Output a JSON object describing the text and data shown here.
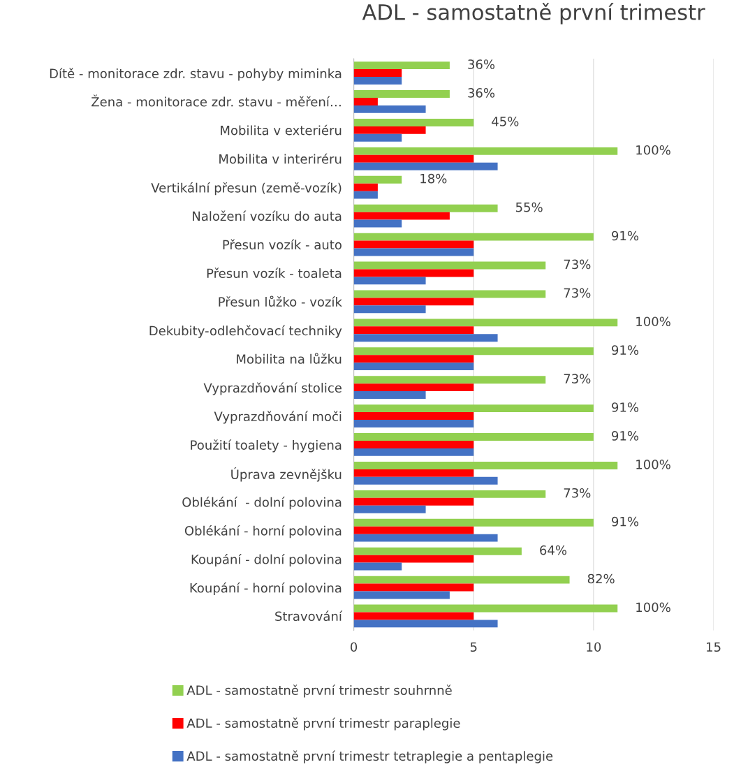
{
  "chart_data": {
    "type": "bar",
    "orientation": "horizontal",
    "title": "ADL - samostatně první trimestr",
    "categories": [
      "Dítě - monitorace zdr. stavu - pohyby miminka",
      "Žena - monitorace zdr. stavu - měření…",
      "Mobilita v exteriéru",
      "Mobilita v interiréru",
      "Vertikální přesun (země-vozík)",
      "Naložení vozíku do auta",
      "Přesun vozík - auto",
      "Přesun vozík - toaleta",
      "Přesun lůžko - vozík",
      "Dekubity-odlehčovací techniky",
      "Mobilita na lůžku",
      "Vyprazdňování stolice",
      "Vyprazdňování moči",
      "Použití toalety - hygiena",
      "Úprava zevnějšku",
      "Oblékání  - dolní polovina",
      "Oblékání - horní polovina",
      "Koupání - dolní polovina",
      "Koupání - horní polovina",
      "Stravování"
    ],
    "series": [
      {
        "name": "ADL - samostatně první trimestr souhrnně",
        "color": "#92d050",
        "values": [
          4,
          4,
          5,
          11,
          2,
          6,
          10,
          8,
          8,
          11,
          10,
          8,
          10,
          10,
          11,
          8,
          10,
          7,
          9,
          11
        ]
      },
      {
        "name": "ADL - samostatně první trimestr paraplegie",
        "color": "#ff0000",
        "values": [
          2,
          1,
          3,
          5,
          1,
          4,
          5,
          5,
          5,
          5,
          5,
          5,
          5,
          5,
          5,
          5,
          5,
          5,
          5,
          5
        ]
      },
      {
        "name": "ADL - samostatně první trimestr tetraplegie a pentaplegie",
        "color": "#4472c4",
        "values": [
          2,
          3,
          2,
          6,
          1,
          2,
          5,
          3,
          3,
          6,
          5,
          3,
          5,
          5,
          6,
          3,
          6,
          2,
          4,
          6
        ]
      }
    ],
    "annotations": [
      "36%",
      "36%",
      "45%",
      "100%",
      "18%",
      "55%",
      "91%",
      "73%",
      "73%",
      "100%",
      "91%",
      "73%",
      "91%",
      "91%",
      "100%",
      "73%",
      "91%",
      "64%",
      "82%",
      "100%"
    ],
    "xlim": [
      0,
      15
    ],
    "xticks": [
      0,
      5,
      10,
      15
    ],
    "grid": "x",
    "legend": "bottom"
  }
}
